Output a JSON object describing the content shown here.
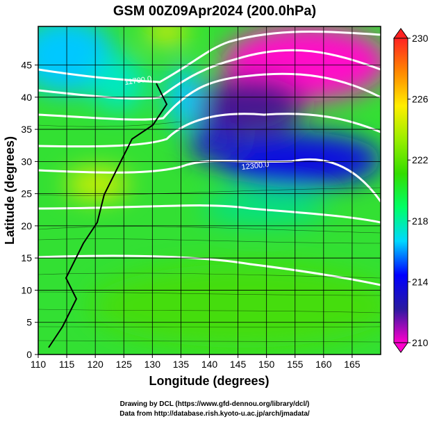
{
  "chart_data": {
    "type": "map",
    "title": "GSM 00Z09Apr2024 (200.0hPa)",
    "xlabel": "Longitude (degrees)",
    "ylabel": "Latitude  (degrees)",
    "xlim": [
      110,
      170
    ],
    "ylim": [
      0,
      51
    ],
    "xticks": [
      110,
      115,
      120,
      125,
      130,
      135,
      140,
      145,
      150,
      155,
      160,
      165
    ],
    "yticks": [
      0,
      5,
      10,
      15,
      20,
      25,
      30,
      35,
      40,
      45
    ],
    "grid": true,
    "colorbar": {
      "clim": [
        210,
        230
      ],
      "ticks": [
        210,
        214,
        218,
        222,
        226,
        230
      ],
      "colors": [
        "#ff00cc",
        "#2a1aa0",
        "#0000ff",
        "#00d8ff",
        "#00ff66",
        "#33dd00",
        "#99ee00",
        "#ffee00",
        "#ff8800",
        "#ff2222"
      ]
    },
    "contour_labels": [
      "11700.0",
      "12300.0"
    ],
    "footer": [
      "Drawing by DCL (https://www.gfd-dennou.org/library/dcl/)",
      "Data from http://database.rish.kyoto-u.ac.jp/arch/jmadata/"
    ]
  }
}
